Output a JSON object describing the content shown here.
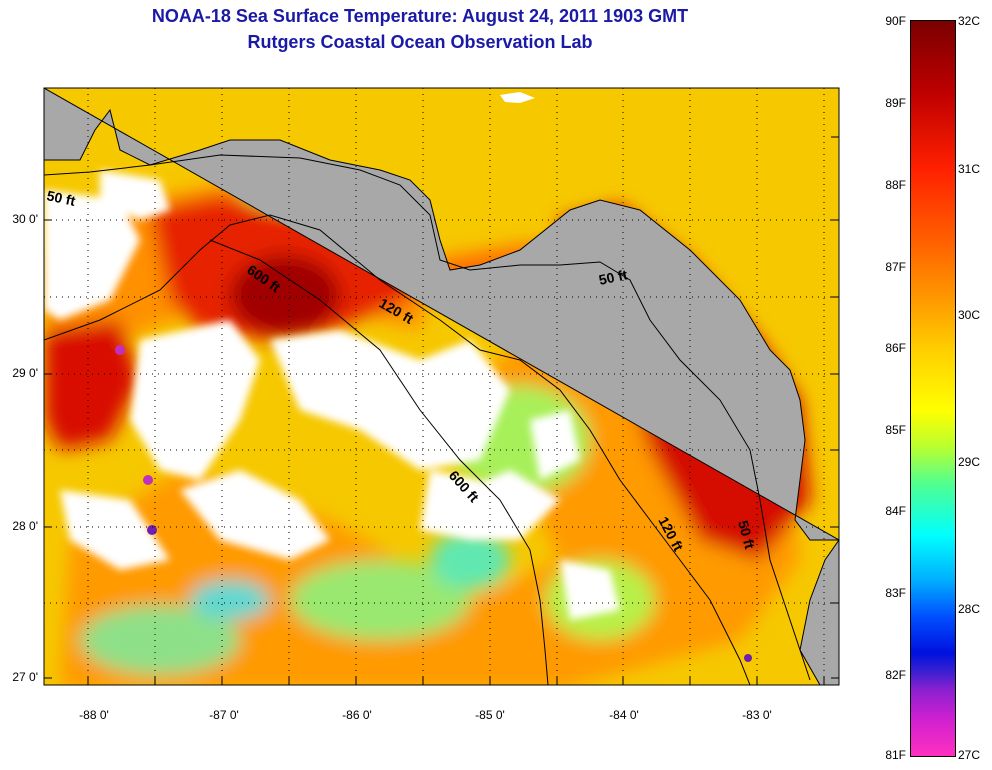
{
  "title_line1": "NOAA-18 Sea Surface Temperature:  August 24, 2011 1903 GMT",
  "title_line2": "Rutgers Coastal Ocean Observation Lab",
  "colorbar": {
    "fahrenheit_labels": [
      "90F",
      "89F",
      "88F",
      "87F",
      "86F",
      "85F",
      "84F",
      "83F",
      "82F",
      "81F"
    ],
    "celsius_labels": [
      "32C",
      "31C",
      "30C",
      "29C",
      "28C",
      "27C"
    ]
  },
  "axes": {
    "latitude_labels": [
      "30 0'",
      "29 0'",
      "28 0'",
      "27 0'"
    ],
    "longitude_labels": [
      "-88 0'",
      "-87 0'",
      "-86 0'",
      "-85 0'",
      "-84 0'",
      "-83 0'"
    ]
  },
  "contours": [
    "50 ft",
    "600 ft",
    "120 ft",
    "50 ft",
    "600 ft",
    "120 ft",
    "50 ft"
  ],
  "colors": {
    "land": "#a8a8a8",
    "cloud": "#ffffff",
    "title": "#1a1aa6"
  }
}
